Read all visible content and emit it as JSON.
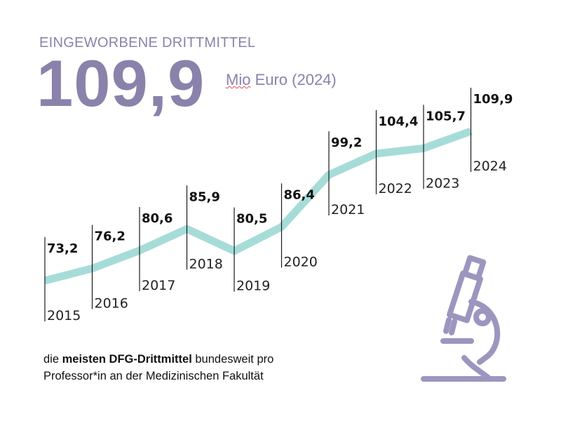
{
  "header": {
    "eyebrow": "EINGEWORBENE DRITTMITTEL",
    "big_number": "109,9",
    "unit_first": "Mio",
    "unit_rest": " Euro (2024)"
  },
  "caption": {
    "part1": "die ",
    "bold": "meisten DFG-Drittmittel",
    "part2": " bundesweit pro",
    "line2": "Professor*in an der Medizinischen Fakultät"
  },
  "colors": {
    "accent": "#8a82aa",
    "line": "#a6dcd8",
    "text": "#111111"
  },
  "icons": [
    "microscope-icon"
  ],
  "chart_data": {
    "type": "line",
    "x": [
      "2015",
      "2016",
      "2017",
      "2018",
      "2019",
      "2020",
      "2021",
      "2022",
      "2023",
      "2024"
    ],
    "values": [
      73.2,
      76.2,
      80.6,
      85.9,
      80.5,
      86.4,
      99.2,
      104.4,
      105.7,
      109.9
    ],
    "labels": [
      "73,2",
      "76,2",
      "80,6",
      "85,9",
      "80,5",
      "86,4",
      "99,2",
      "104,4",
      "105,7",
      "109,9"
    ],
    "title": "EINGEWORBENE DRITTMITTEL",
    "ylabel": "",
    "xlabel": "",
    "grid": false
  }
}
